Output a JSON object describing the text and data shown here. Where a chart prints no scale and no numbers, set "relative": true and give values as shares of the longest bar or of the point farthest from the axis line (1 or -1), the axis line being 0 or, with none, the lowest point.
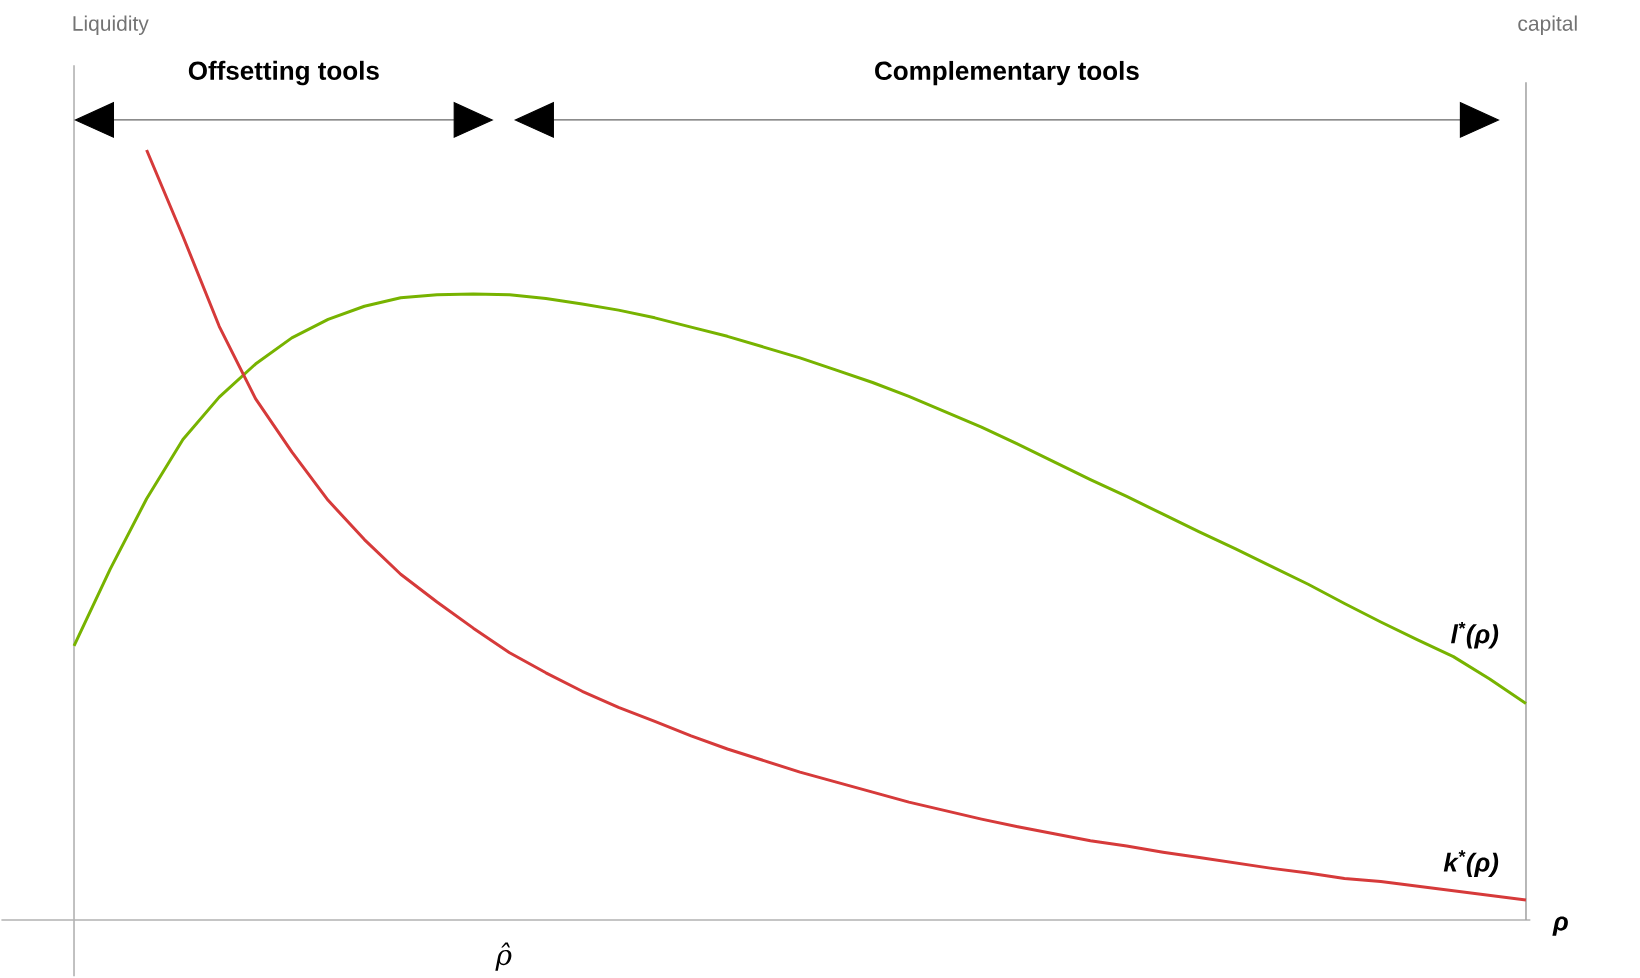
{
  "chart_data": {
    "type": "line",
    "relative": true,
    "xlabel": "ρ",
    "annotations": [
      "Offsetting tools",
      "Complementary tools",
      "ρ̂",
      "Liquidity",
      "capital"
    ],
    "marker": "none",
    "line_style": "solid",
    "categories": [
      null,
      null,
      null,
      null,
      null,
      null,
      null,
      null,
      null,
      null,
      null,
      null,
      null,
      null,
      null,
      null,
      null,
      null,
      null,
      null,
      null,
      null,
      null,
      null,
      null,
      null,
      null,
      null,
      null,
      null,
      null,
      null,
      null,
      null,
      null,
      null,
      null,
      null,
      null,
      null,
      null
    ],
    "series": [
      {
        "name": "l$^{*}$(ρ)",
        "color": "#77b300",
        "values": [
          0.356,
          0.456,
          0.547,
          0.624,
          0.679,
          0.722,
          0.756,
          0.78,
          0.797,
          0.808,
          0.812,
          0.813,
          0.812,
          0.807,
          0.8,
          0.792,
          0.782,
          0.77,
          0.758,
          0.744,
          0.73,
          0.714,
          0.698,
          0.68,
          0.66,
          0.64,
          0.618,
          0.595,
          0.572,
          0.55,
          0.527,
          0.504,
          0.482,
          0.459,
          0.436,
          0.411,
          0.387,
          0.364,
          0.342,
          0.313,
          0.281
        ]
      },
      {
        "name": "k$^{*}$(ρ)",
        "color": "#d63a3a",
        "values": [
          null,
          null,
          1,
          0.888,
          0.771,
          0.677,
          0.608,
          0.545,
          0.494,
          0.449,
          0.413,
          0.379,
          0.347,
          0.321,
          0.297,
          0.276,
          0.258,
          0.239,
          0.222,
          0.207,
          0.192,
          0.179,
          0.166,
          0.153,
          0.142,
          0.131,
          0.121,
          0.112,
          0.103,
          0.096,
          0.088,
          0.081,
          0.074,
          0.067,
          0.061,
          0.054,
          0.05,
          0.044,
          0.038,
          0.032,
          0.026
        ]
      }
    ]
  }
}
